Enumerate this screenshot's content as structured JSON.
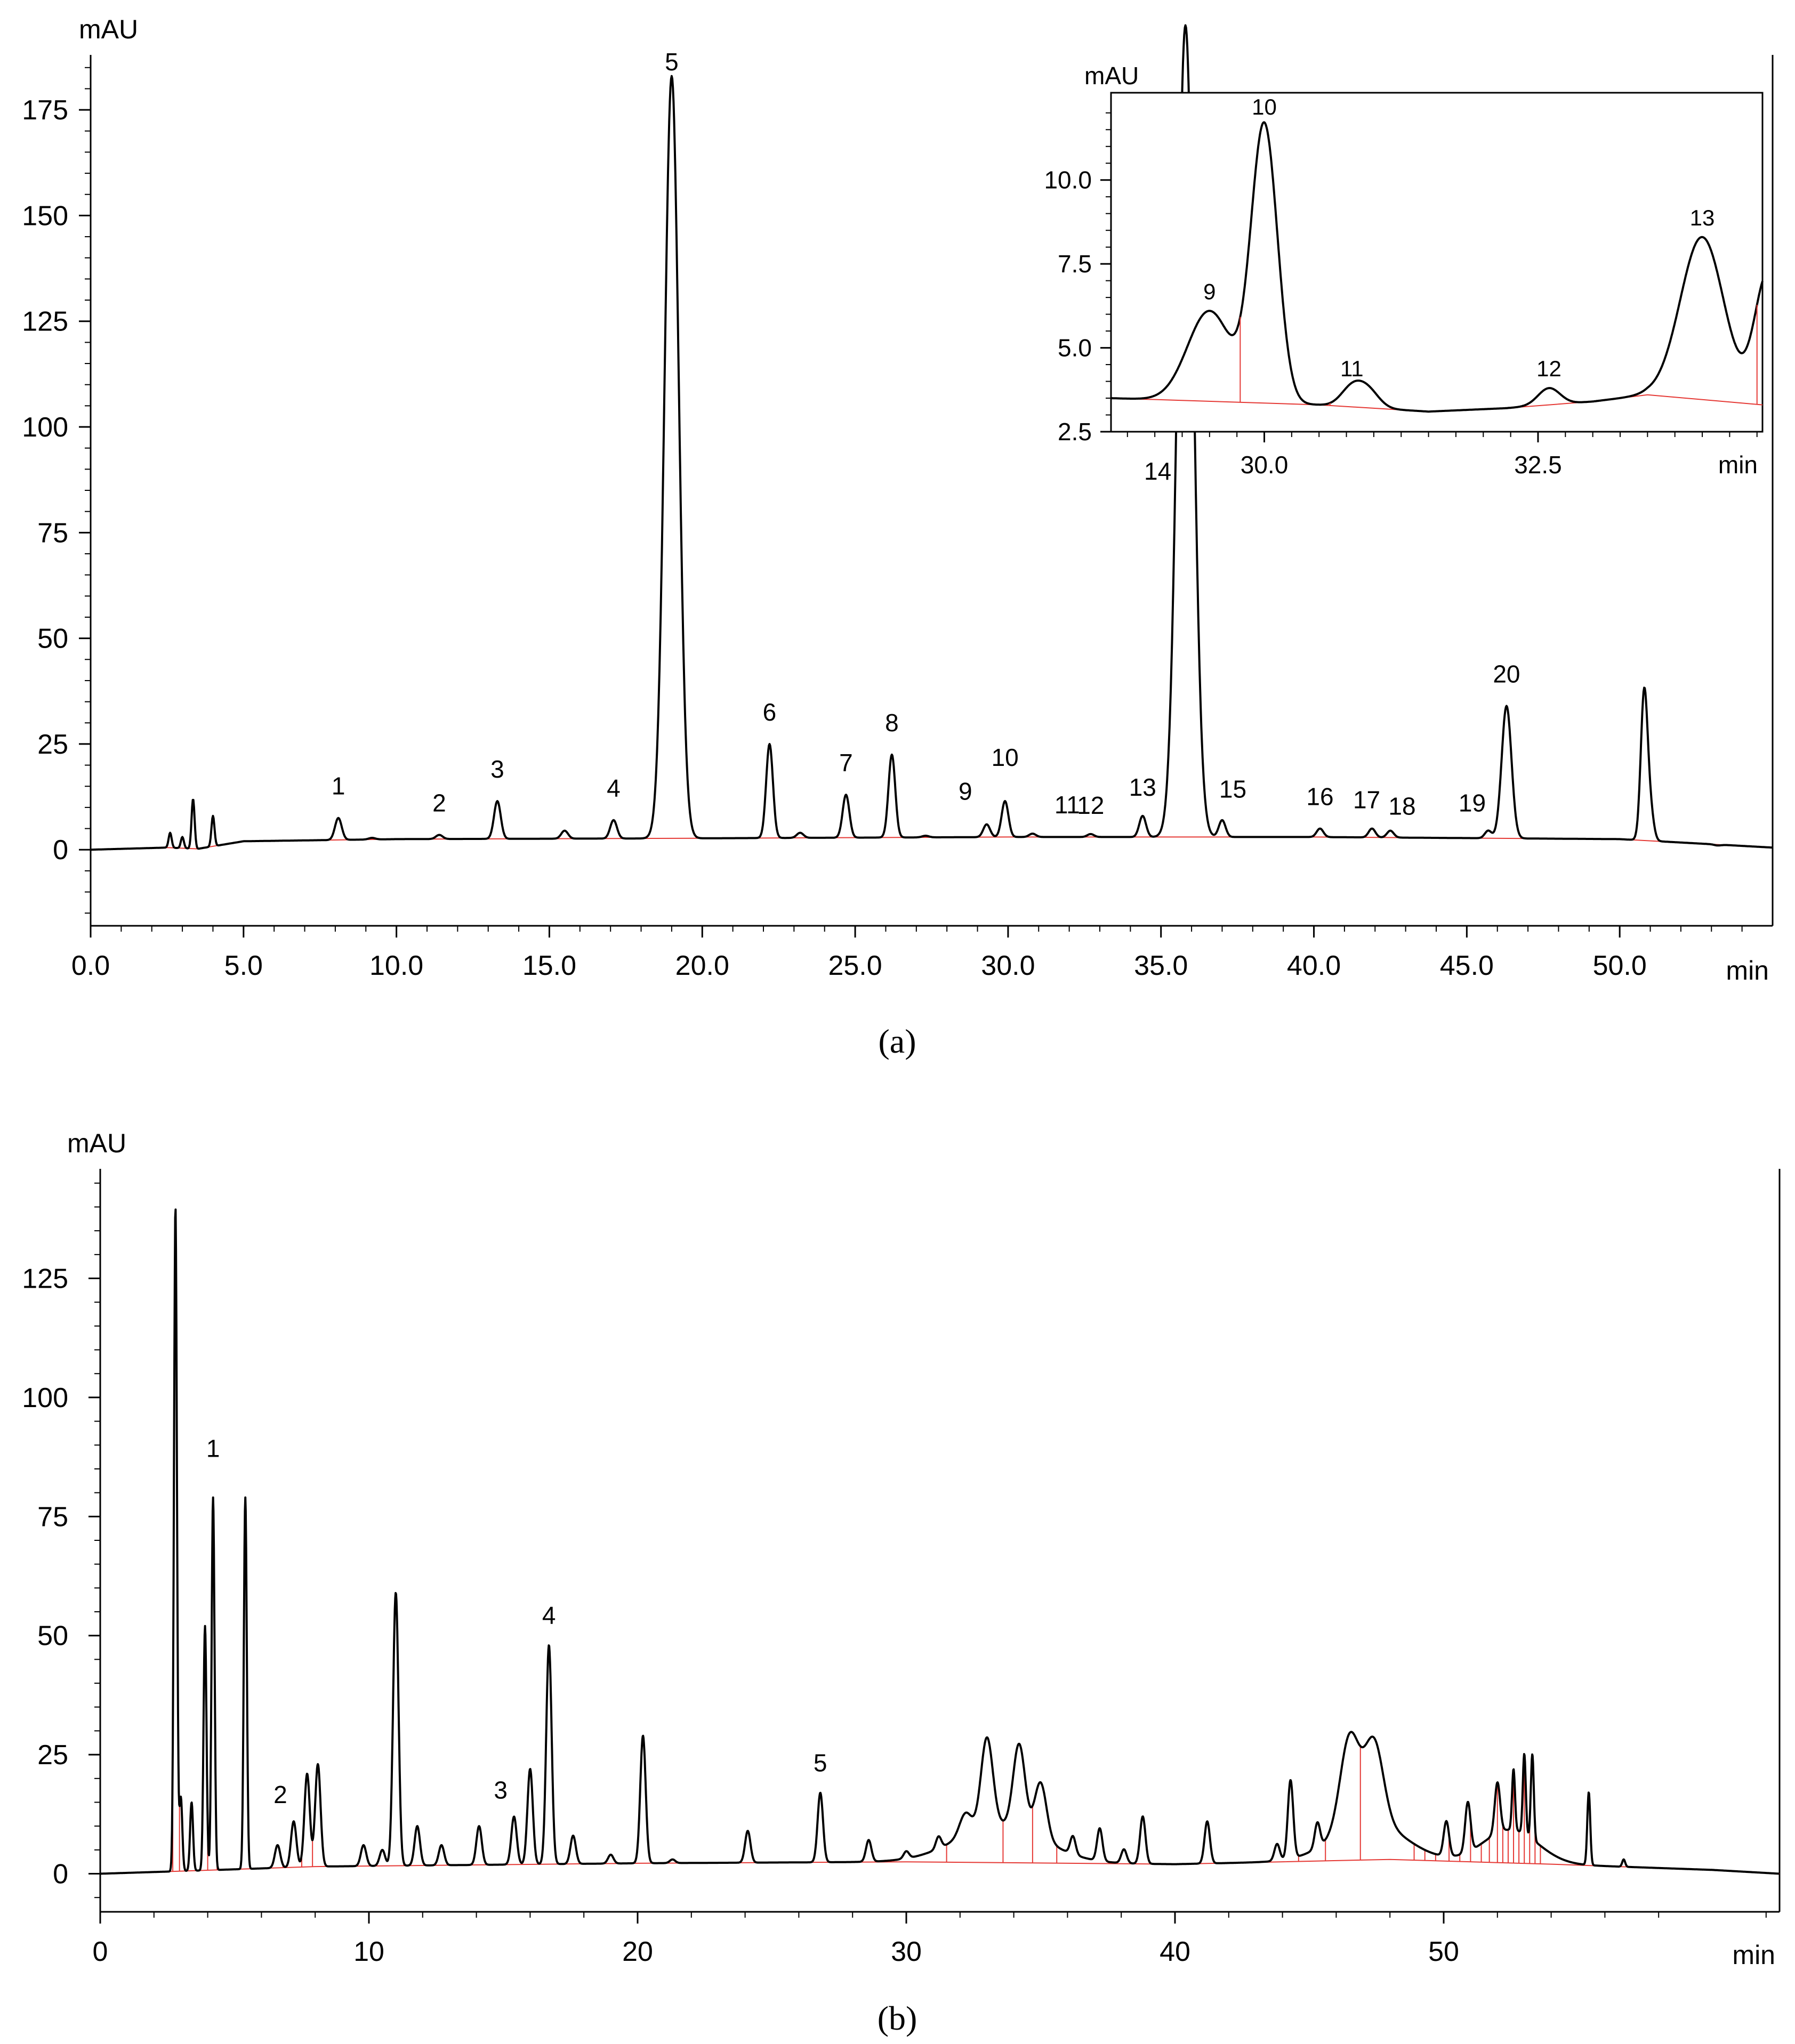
{
  "chart_data": [
    {
      "type": "line",
      "panel_label": "(a)",
      "ylabel": "mAU",
      "xlabel": "min",
      "xlim": [
        0,
        55
      ],
      "ylim": [
        -18,
        188
      ],
      "xticks": [
        0,
        5,
        10,
        15,
        20,
        25,
        30,
        35,
        40,
        45,
        50
      ],
      "xtick_labels": [
        "0.0",
        "5.0",
        "10.0",
        "15.0",
        "20.0",
        "25.0",
        "30.0",
        "35.0",
        "40.0",
        "45.0",
        "50.0"
      ],
      "yticks": [
        0,
        25,
        50,
        75,
        100,
        125,
        150,
        175
      ],
      "ytick_labels": [
        "0",
        "25",
        "50",
        "75",
        "100",
        "125",
        "150",
        "175"
      ],
      "grid": false,
      "baseline": [
        [
          0,
          0
        ],
        [
          2.5,
          0.5
        ],
        [
          3.5,
          0.2
        ],
        [
          5,
          2
        ],
        [
          10,
          2.5
        ],
        [
          20,
          2.7
        ],
        [
          30,
          3
        ],
        [
          40,
          3
        ],
        [
          50,
          2.5
        ],
        [
          55,
          0.5
        ]
      ],
      "peaks": [
        {
          "label": "1",
          "x": 8.1,
          "y": 7.5
        },
        {
          "label": "2",
          "x": 11.4,
          "y": 3.5
        },
        {
          "label": "3",
          "x": 13.3,
          "y": 11.5
        },
        {
          "label": "4",
          "x": 17.1,
          "y": 7
        },
        {
          "label": "5",
          "x": 19.0,
          "y": 183
        },
        {
          "label": "6",
          "x": 22.2,
          "y": 25
        },
        {
          "label": "7",
          "x": 24.7,
          "y": 13
        },
        {
          "label": "8",
          "x": 26.2,
          "y": 22.5
        },
        {
          "label": "9",
          "x": 29.3,
          "y": 6
        },
        {
          "label": "10",
          "x": 29.9,
          "y": 11.5
        },
        {
          "label": "11",
          "x": 30.8,
          "y": 3.8
        },
        {
          "label": "12",
          "x": 32.7,
          "y": 3.7
        },
        {
          "label": "13",
          "x": 34.4,
          "y": 8
        },
        {
          "label": "14",
          "x": 35.8,
          "y": 195
        },
        {
          "label": "15",
          "x": 37.0,
          "y": 7
        },
        {
          "label": "16",
          "x": 40.2,
          "y": 5
        },
        {
          "label": "17",
          "x": 41.9,
          "y": 5
        },
        {
          "label": "18",
          "x": 42.5,
          "y": 4.5
        },
        {
          "label": "19",
          "x": 45.7,
          "y": 4.5
        },
        {
          "label": "20",
          "x": 46.3,
          "y": 34
        },
        {
          "label": "",
          "x": 50.8,
          "y": 37
        }
      ],
      "inset": {
        "ylabel": "mAU",
        "xlabel": "min",
        "xlim": [
          28.6,
          34.55
        ],
        "ylim": [
          2.5,
          12.6
        ],
        "xticks": [
          30.0,
          32.5
        ],
        "xtick_labels": [
          "30.0",
          "32.5"
        ],
        "yticks": [
          2.5,
          5.0,
          7.5,
          10.0
        ],
        "ytick_labels": [
          "2.5",
          "5.0",
          "7.5",
          "10.0"
        ],
        "baseline": [
          [
            28.6,
            3.5
          ],
          [
            30.5,
            3.3
          ],
          [
            31.5,
            3.1
          ],
          [
            32.2,
            3.2
          ],
          [
            33.0,
            3.4
          ],
          [
            33.5,
            3.6
          ],
          [
            34.55,
            3.3
          ]
        ],
        "peaks": [
          {
            "label": "9",
            "x": 29.5,
            "y": 6.1
          },
          {
            "label": "10",
            "x": 30.0,
            "y": 11.6
          },
          {
            "label": "11",
            "x": 30.8,
            "y": 3.8
          },
          {
            "label": "12",
            "x": 32.6,
            "y": 3.8
          },
          {
            "label": "13",
            "x": 34.0,
            "y": 8.3
          }
        ]
      }
    },
    {
      "type": "line",
      "panel_label": "(b)",
      "ylabel": "mAU",
      "xlabel": "min",
      "xlim": [
        0,
        62.5
      ],
      "ylim": [
        -8,
        148
      ],
      "xticks": [
        0,
        10,
        20,
        30,
        40,
        50
      ],
      "xtick_labels": [
        "0",
        "10",
        "20",
        "30",
        "40",
        "50"
      ],
      "yticks": [
        0,
        25,
        50,
        75,
        100,
        125
      ],
      "ytick_labels": [
        "0",
        "25",
        "50",
        "75",
        "100",
        "125"
      ],
      "grid": false,
      "baseline": [
        [
          0,
          0
        ],
        [
          2.8,
          0.5
        ],
        [
          8,
          1.5
        ],
        [
          20,
          2.2
        ],
        [
          30,
          2.5
        ],
        [
          40,
          2
        ],
        [
          48,
          3
        ],
        [
          54,
          2
        ],
        [
          60,
          0.8
        ],
        [
          62.5,
          0
        ]
      ],
      "peaks": [
        {
          "label": "",
          "x": 2.8,
          "y": 140
        },
        {
          "label": "",
          "x": 3.0,
          "y": 16
        },
        {
          "label": "",
          "x": 3.4,
          "y": 15
        },
        {
          "label": "",
          "x": 3.9,
          "y": 52
        },
        {
          "label": "1",
          "x": 4.2,
          "y": 79
        },
        {
          "label": "",
          "x": 5.4,
          "y": 79
        },
        {
          "label": "",
          "x": 6.6,
          "y": 6
        },
        {
          "label": "2",
          "x": 7.2,
          "y": 11
        },
        {
          "label": "",
          "x": 7.7,
          "y": 21
        },
        {
          "label": "",
          "x": 8.1,
          "y": 23
        },
        {
          "label": "",
          "x": 9.8,
          "y": 6
        },
        {
          "label": "",
          "x": 10.5,
          "y": 5
        },
        {
          "label": "",
          "x": 11.0,
          "y": 59
        },
        {
          "label": "",
          "x": 11.8,
          "y": 10
        },
        {
          "label": "",
          "x": 12.7,
          "y": 6
        },
        {
          "label": "",
          "x": 14.1,
          "y": 10
        },
        {
          "label": "3",
          "x": 15.4,
          "y": 12
        },
        {
          "label": "",
          "x": 16.0,
          "y": 22
        },
        {
          "label": "4",
          "x": 16.7,
          "y": 48
        },
        {
          "label": "",
          "x": 17.6,
          "y": 8
        },
        {
          "label": "",
          "x": 19.0,
          "y": 4
        },
        {
          "label": "",
          "x": 20.2,
          "y": 29
        },
        {
          "label": "",
          "x": 21.3,
          "y": 3
        },
        {
          "label": "",
          "x": 24.1,
          "y": 9
        },
        {
          "label": "5",
          "x": 26.8,
          "y": 17
        },
        {
          "label": "",
          "x": 28.6,
          "y": 7
        },
        {
          "label": "",
          "x": 30.0,
          "y": 4
        },
        {
          "label": "",
          "x": 31.2,
          "y": 5
        },
        {
          "label": "",
          "x": 32.2,
          "y": 7
        },
        {
          "label": "",
          "x": 33.0,
          "y": 21
        },
        {
          "label": "",
          "x": 34.2,
          "y": 20
        },
        {
          "label": "",
          "x": 35.0,
          "y": 14
        },
        {
          "label": "",
          "x": 36.2,
          "y": 6
        },
        {
          "label": "",
          "x": 37.2,
          "y": 9
        },
        {
          "label": "",
          "x": 38.1,
          "y": 5
        },
        {
          "label": "",
          "x": 38.8,
          "y": 12
        },
        {
          "label": "",
          "x": 41.2,
          "y": 11
        },
        {
          "label": "",
          "x": 43.8,
          "y": 6
        },
        {
          "label": "",
          "x": 44.3,
          "y": 19
        },
        {
          "label": "",
          "x": 45.3,
          "y": 8
        },
        {
          "label": "",
          "x": 46.5,
          "y": 22
        },
        {
          "label": "",
          "x": 47.4,
          "y": 20
        },
        {
          "label": "",
          "x": 50.1,
          "y": 10
        },
        {
          "label": "",
          "x": 50.9,
          "y": 13
        },
        {
          "label": "",
          "x": 52.0,
          "y": 13
        },
        {
          "label": "",
          "x": 52.6,
          "y": 15
        },
        {
          "label": "",
          "x": 53.0,
          "y": 19
        },
        {
          "label": "",
          "x": 53.3,
          "y": 20
        },
        {
          "label": "",
          "x": 55.4,
          "y": 17
        },
        {
          "label": "",
          "x": 56.7,
          "y": 3
        }
      ]
    }
  ]
}
